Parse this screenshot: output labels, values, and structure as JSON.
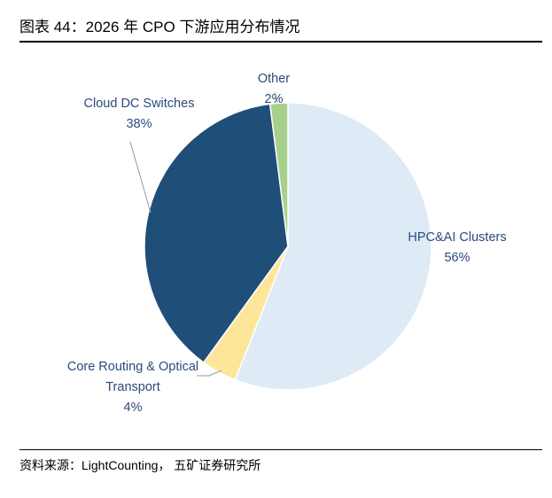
{
  "figure": {
    "title": "图表 44：2026 年 CPO 下游应用分布情况",
    "source": "资料来源：LightCounting， 五矿证券研究所"
  },
  "chart_data": {
    "type": "pie",
    "title": "",
    "start": "top",
    "direction": "clockwise",
    "slices": [
      {
        "name": "HPC&AI Clusters",
        "value": 56,
        "label": "56%",
        "color": "#deeaf6"
      },
      {
        "name": "Core Routing & Optical Transport",
        "label_lines": [
          "Core Routing & Optical",
          "Transport"
        ],
        "value": 4,
        "label": "4%",
        "color": "#fde59a"
      },
      {
        "name": "Cloud DC Switches",
        "value": 38,
        "label": "38%",
        "color": "#1f4e79"
      },
      {
        "name": "Other",
        "value": 2,
        "label": "2%",
        "color": "#a8d08d"
      }
    ]
  }
}
